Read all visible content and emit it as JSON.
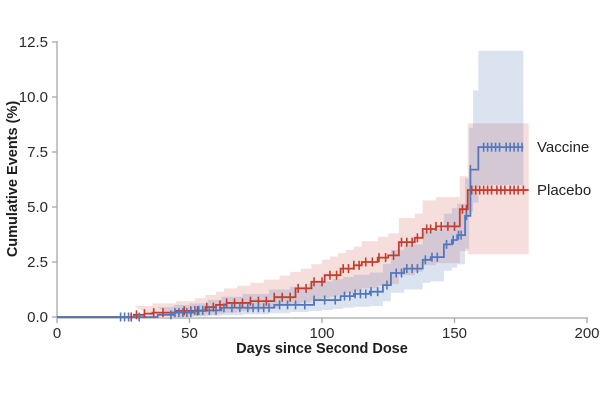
{
  "figure": {
    "background": "#ffffff",
    "axis_color": "#a8a8a8",
    "text_color": "#231f20"
  },
  "chart_data": {
    "type": "line",
    "subtype": "kaplan-meier-cumulative-incidence-step-curves-with-confidence-bands",
    "title": "",
    "xlabel": "Days since Second Dose",
    "ylabel": "Cumulative Events (%)",
    "xlim": [
      0,
      200
    ],
    "ylim": [
      0,
      12.5
    ],
    "xticks": [
      0,
      50,
      100,
      150,
      200
    ],
    "xtick_labels": [
      "0",
      "50",
      "100",
      "150",
      "200"
    ],
    "yticks": [
      0,
      2.5,
      5,
      7.5,
      10,
      12.5
    ],
    "ytick_labels": [
      "0.0",
      "2.5",
      "5.0",
      "7.5",
      "10.0",
      "12.5"
    ],
    "grid": false,
    "legend_position": "right-of-curve-ends",
    "series": [
      {
        "name": "Vaccine",
        "color": "#5377bb",
        "band_color": "rgba(81,116,182,0.20)",
        "end_day": 176,
        "steps": [
          [
            0,
            0
          ],
          [
            38,
            0.1
          ],
          [
            44,
            0.2
          ],
          [
            52,
            0.3
          ],
          [
            62,
            0.42
          ],
          [
            82,
            0.55
          ],
          [
            97,
            0.77
          ],
          [
            107,
            0.95
          ],
          [
            112,
            1.05
          ],
          [
            118,
            1.15
          ],
          [
            123,
            1.45
          ],
          [
            126,
            2.0
          ],
          [
            131,
            2.2
          ],
          [
            138,
            2.6
          ],
          [
            141,
            2.72
          ],
          [
            146,
            3.3
          ],
          [
            149,
            3.5
          ],
          [
            151,
            3.72
          ],
          [
            154,
            4.6
          ],
          [
            156,
            6.7
          ],
          [
            159,
            7.72
          ]
        ],
        "censor_days": [
          24,
          25.5,
          27,
          31,
          43,
          44.5,
          46,
          47.5,
          49,
          50.5,
          52,
          53.5,
          55,
          57.5,
          60,
          63,
          66,
          69,
          72,
          74,
          76,
          78,
          80,
          84,
          87,
          90,
          93.5,
          97,
          101,
          105,
          108.5,
          110.5,
          112.5,
          114.5,
          116.5,
          118.5,
          121,
          124.5,
          128,
          130,
          132,
          134,
          136,
          139,
          141.5,
          143.5,
          147,
          149.5,
          151.5,
          152.5,
          154.5,
          156,
          161,
          162.5,
          164,
          165.5,
          167,
          169.5,
          171,
          172.5,
          174,
          175.5
        ],
        "band": [
          [
            38,
            0,
            0.45
          ],
          [
            44,
            0,
            0.55
          ],
          [
            50,
            0.02,
            0.62
          ],
          [
            57,
            0.05,
            0.78
          ],
          [
            62,
            0.08,
            0.92
          ],
          [
            70,
            0.12,
            1.05
          ],
          [
            80,
            0.17,
            1.25
          ],
          [
            88,
            0.22,
            1.38
          ],
          [
            95,
            0.27,
            1.52
          ],
          [
            100,
            0.32,
            1.62
          ],
          [
            104,
            0.37,
            1.72
          ],
          [
            108,
            0.42,
            1.82
          ],
          [
            112,
            0.46,
            1.92
          ],
          [
            118,
            0.5,
            2.02
          ],
          [
            123,
            0.72,
            2.42
          ],
          [
            126,
            1.1,
            3.05
          ],
          [
            131,
            1.25,
            3.3
          ],
          [
            138,
            1.55,
            3.9
          ],
          [
            141,
            1.62,
            4.0
          ],
          [
            146,
            2.1,
            4.7
          ],
          [
            149,
            2.25,
            4.95
          ],
          [
            151,
            2.4,
            5.15
          ],
          [
            154,
            3.1,
            6.3
          ],
          [
            155.5,
            4.8,
            8.6
          ],
          [
            157,
            5.2,
            10.3
          ],
          [
            159,
            6.0,
            12.1
          ]
        ]
      },
      {
        "name": "Placebo",
        "color": "#c53d2d",
        "band_color": "rgba(197,61,45,0.17)",
        "end_day": 178,
        "steps": [
          [
            0,
            0
          ],
          [
            29,
            0.1
          ],
          [
            33,
            0.15
          ],
          [
            36,
            0.2
          ],
          [
            45,
            0.28
          ],
          [
            56,
            0.45
          ],
          [
            60,
            0.55
          ],
          [
            64,
            0.64
          ],
          [
            73,
            0.72
          ],
          [
            82,
            0.9
          ],
          [
            90,
            1.3
          ],
          [
            96,
            1.6
          ],
          [
            101,
            1.9
          ],
          [
            107,
            2.2
          ],
          [
            112,
            2.35
          ],
          [
            115,
            2.5
          ],
          [
            121,
            2.7
          ],
          [
            125,
            2.8
          ],
          [
            129,
            3.4
          ],
          [
            135,
            3.6
          ],
          [
            138,
            4.0
          ],
          [
            143,
            4.12
          ],
          [
            152,
            4.9
          ],
          [
            155,
            5.77
          ]
        ],
        "censor_days": [
          28,
          30,
          33,
          36.5,
          40,
          48,
          50.5,
          53,
          56.5,
          59,
          61.5,
          64,
          67,
          70,
          73,
          76,
          79,
          82,
          85,
          88,
          91,
          94,
          97,
          100,
          103,
          105.5,
          108,
          110,
          112,
          114,
          116.5,
          119,
          121.5,
          124,
          127,
          130,
          132,
          134,
          136,
          139.5,
          141,
          143,
          145,
          147.5,
          150,
          153,
          154.5,
          156.5,
          158,
          159.5,
          161,
          162.5,
          164,
          166,
          167.5,
          169,
          171,
          172.5,
          174,
          176
        ],
        "band": [
          [
            29,
            0,
            0.5
          ],
          [
            36,
            0,
            0.62
          ],
          [
            45,
            0.02,
            0.72
          ],
          [
            52,
            0.05,
            0.85
          ],
          [
            56,
            0.1,
            1.0
          ],
          [
            60,
            0.15,
            1.15
          ],
          [
            63,
            0.2,
            1.3
          ],
          [
            68,
            0.26,
            1.42
          ],
          [
            73,
            0.32,
            1.55
          ],
          [
            78,
            0.4,
            1.7
          ],
          [
            84,
            0.5,
            1.88
          ],
          [
            88,
            0.58,
            2.05
          ],
          [
            92,
            0.66,
            2.2
          ],
          [
            96,
            0.75,
            2.4
          ],
          [
            100,
            0.85,
            2.6
          ],
          [
            103,
            0.92,
            2.75
          ],
          [
            106,
            1.0,
            2.9
          ],
          [
            109,
            1.08,
            3.05
          ],
          [
            112,
            1.16,
            3.2
          ],
          [
            115,
            1.3,
            3.45
          ],
          [
            121,
            1.42,
            3.65
          ],
          [
            125,
            1.5,
            3.8
          ],
          [
            129,
            1.9,
            4.5
          ],
          [
            135,
            2.05,
            4.7
          ],
          [
            138,
            2.35,
            5.3
          ],
          [
            143,
            2.45,
            5.45
          ],
          [
            152,
            3.0,
            6.4
          ],
          [
            155,
            2.85,
            8.8
          ]
        ]
      }
    ]
  }
}
